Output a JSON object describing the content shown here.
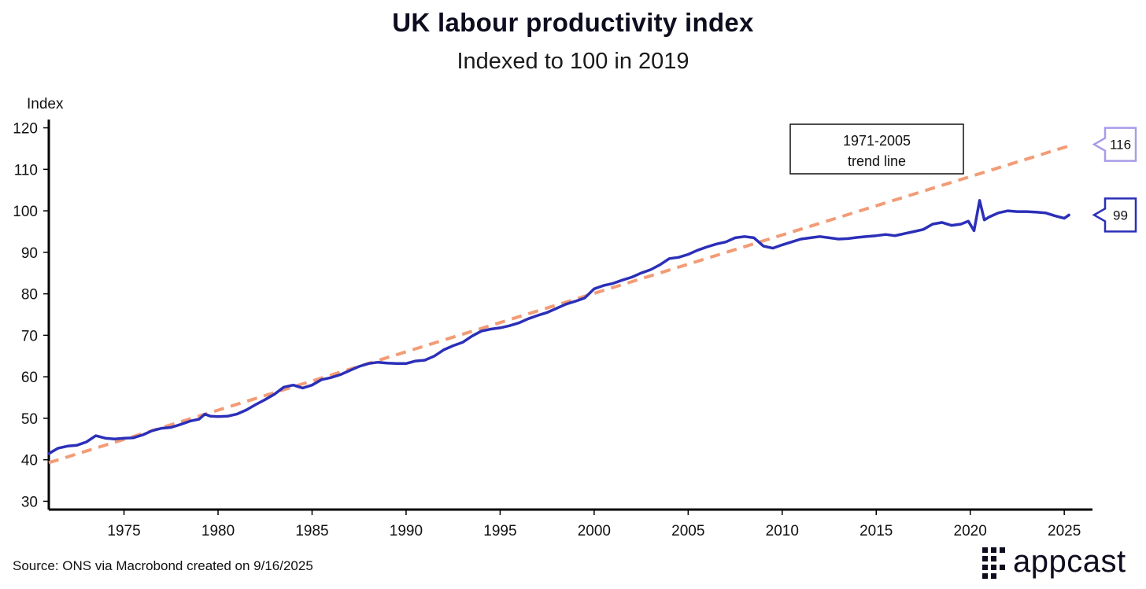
{
  "chart_data": {
    "type": "line",
    "title": "UK labour productivity index",
    "subtitle": "Indexed to 100 in 2019",
    "ylabel": "Index",
    "xlabel": "",
    "ylim": [
      28,
      122
    ],
    "xlim": [
      1971.0,
      2026.5
    ],
    "yticks": [
      30,
      40,
      50,
      60,
      70,
      80,
      90,
      100,
      110,
      120
    ],
    "xticks": [
      1975,
      1980,
      1985,
      1990,
      1995,
      2000,
      2005,
      2010,
      2015,
      2020,
      2025
    ],
    "grid": false,
    "series": [
      {
        "name": "UK labour productivity",
        "color": "#2b2fb8",
        "end_label": "99",
        "x": [
          1971.0,
          1971.5,
          1972.0,
          1972.5,
          1973.0,
          1973.5,
          1974.0,
          1974.5,
          1975.0,
          1975.5,
          1976.0,
          1976.5,
          1977.0,
          1977.5,
          1978.0,
          1978.5,
          1979.0,
          1979.3,
          1979.6,
          1980.0,
          1980.5,
          1981.0,
          1981.5,
          1982.0,
          1982.5,
          1983.0,
          1983.5,
          1984.0,
          1984.5,
          1985.0,
          1985.5,
          1986.0,
          1986.5,
          1987.0,
          1987.5,
          1988.0,
          1988.5,
          1989.0,
          1989.5,
          1990.0,
          1990.5,
          1991.0,
          1991.5,
          1992.0,
          1992.5,
          1993.0,
          1993.5,
          1994.0,
          1994.5,
          1995.0,
          1995.5,
          1996.0,
          1996.5,
          1997.0,
          1997.5,
          1998.0,
          1998.5,
          1999.0,
          1999.5,
          2000.0,
          2000.5,
          2001.0,
          2001.5,
          2002.0,
          2002.5,
          2003.0,
          2003.5,
          2004.0,
          2004.5,
          2005.0,
          2005.5,
          2006.0,
          2006.5,
          2007.0,
          2007.5,
          2008.0,
          2008.5,
          2009.0,
          2009.5,
          2010.0,
          2010.5,
          2011.0,
          2011.5,
          2012.0,
          2012.5,
          2013.0,
          2013.5,
          2014.0,
          2014.5,
          2015.0,
          2015.5,
          2016.0,
          2016.5,
          2017.0,
          2017.5,
          2018.0,
          2018.5,
          2019.0,
          2019.5,
          2019.9,
          2020.2,
          2020.5,
          2020.75,
          2021.0,
          2021.5,
          2022.0,
          2022.5,
          2023.0,
          2023.5,
          2024.0,
          2024.5,
          2025.0,
          2025.25
        ],
        "y": [
          41.5,
          42.8,
          43.3,
          43.5,
          44.3,
          45.8,
          45.2,
          45.0,
          45.2,
          45.3,
          46.0,
          47.0,
          47.6,
          47.8,
          48.5,
          49.3,
          49.8,
          51.0,
          50.5,
          50.4,
          50.5,
          51.0,
          52.0,
          53.3,
          54.5,
          55.8,
          57.5,
          58.0,
          57.3,
          58.0,
          59.3,
          59.8,
          60.5,
          61.5,
          62.5,
          63.2,
          63.5,
          63.3,
          63.2,
          63.2,
          63.8,
          64.0,
          65.0,
          66.5,
          67.5,
          68.3,
          69.8,
          71.0,
          71.5,
          71.8,
          72.3,
          73.0,
          74.0,
          74.8,
          75.5,
          76.5,
          77.5,
          78.2,
          79.0,
          81.2,
          82.0,
          82.5,
          83.3,
          84.0,
          85.0,
          85.8,
          87.0,
          88.5,
          88.8,
          89.5,
          90.5,
          91.3,
          92.0,
          92.5,
          93.5,
          93.8,
          93.5,
          91.5,
          91.0,
          91.8,
          92.5,
          93.2,
          93.5,
          93.8,
          93.5,
          93.2,
          93.3,
          93.6,
          93.8,
          94.0,
          94.3,
          94.0,
          94.5,
          95.0,
          95.5,
          96.8,
          97.2,
          96.5,
          96.8,
          97.5,
          95.2,
          102.5,
          97.8,
          98.5,
          99.5,
          100.0,
          99.8,
          99.8,
          99.7,
          99.5,
          98.8,
          98.2,
          99.0
        ]
      },
      {
        "name": "1971-2005 trend line",
        "color": "#f29c77",
        "dashed": true,
        "end_label": "116",
        "x": [
          1971.0,
          2025.5
        ],
        "y": [
          39.3,
          116.0
        ]
      }
    ],
    "annotations": [
      {
        "text_line1": "1971-2005",
        "text_line2": "trend line"
      }
    ]
  },
  "footer": {
    "source": "Source: ONS via Macrobond created on 9/16/2025",
    "logo_text": "appcast"
  }
}
